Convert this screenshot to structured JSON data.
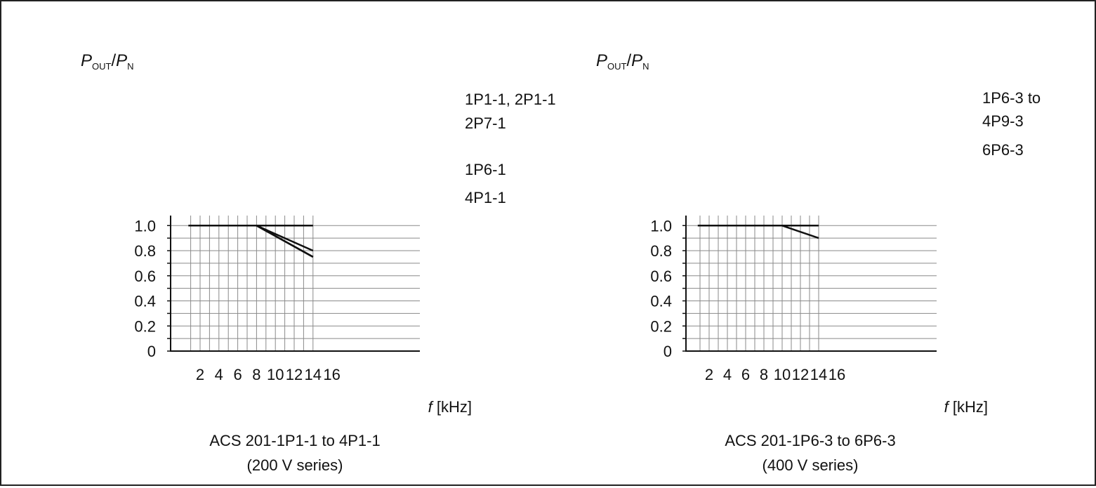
{
  "chart_data": [
    {
      "type": "line",
      "ylabel": {
        "main": "P",
        "sub1": "OUT",
        "slash": "/",
        "main2": "P",
        "sub2": "N"
      },
      "xlabel": {
        "var": "f",
        "unit": " [kHz]"
      },
      "caption": [
        "ACS 201-1P1-1 to 4P1-1",
        "(200 V series)"
      ],
      "x_ticks": [
        2,
        4,
        6,
        8,
        10,
        12,
        14,
        16
      ],
      "y_ticks": [
        {
          "value": 0,
          "label": "0"
        },
        {
          "value": 0.2,
          "label": "0.2"
        },
        {
          "value": 0.4,
          "label": "0.4"
        },
        {
          "value": 0.6,
          "label": "0.6"
        },
        {
          "value": 0.8,
          "label": "0.8"
        },
        {
          "value": 1.0,
          "label": "1.0"
        }
      ],
      "xlim": [
        0.75,
        14
      ],
      "ylim": [
        0,
        1.08
      ],
      "grid": true,
      "series": [
        {
          "name": "1P1-1, 2P1-1",
          "points": [
            [
              0.75,
              1.0
            ],
            [
              14,
              1.0
            ]
          ]
        },
        {
          "name": "2P7-1",
          "points": [
            [
              8,
              1.0
            ],
            [
              14,
              0.8
            ]
          ]
        },
        {
          "name": "1P6-1",
          "points": [
            [
              8,
              1.0
            ],
            [
              14,
              0.75
            ]
          ]
        },
        {
          "name": "4P1-1",
          "points": [
            [
              8,
              1.0
            ],
            [
              14,
              0.75
            ]
          ]
        }
      ],
      "legend_labels": [
        "1P1-1, 2P1-1",
        "2P7-1",
        "1P6-1",
        "4P1-1"
      ]
    },
    {
      "type": "line",
      "ylabel": {
        "main": "P",
        "sub1": "OUT",
        "slash": "/",
        "main2": "P",
        "sub2": "N"
      },
      "xlabel": {
        "var": "f",
        "unit": " [kHz]"
      },
      "caption": [
        "ACS 201-1P6-3 to 6P6-3",
        "(400 V series)"
      ],
      "x_ticks": [
        2,
        4,
        6,
        8,
        10,
        12,
        14,
        16
      ],
      "y_ticks": [
        {
          "value": 0,
          "label": "0"
        },
        {
          "value": 0.2,
          "label": "0.2"
        },
        {
          "value": 0.4,
          "label": "0.4"
        },
        {
          "value": 0.6,
          "label": "0.6"
        },
        {
          "value": 0.8,
          "label": "0.8"
        },
        {
          "value": 1.0,
          "label": "1.0"
        }
      ],
      "xlim": [
        0.75,
        14
      ],
      "ylim": [
        0,
        1.08
      ],
      "grid": true,
      "series": [
        {
          "name": "1P6-3 to 4P9-3",
          "points": [
            [
              0.75,
              1.0
            ],
            [
              14,
              1.0
            ]
          ]
        },
        {
          "name": "6P6-3",
          "points": [
            [
              10,
              1.0
            ],
            [
              14,
              0.9
            ]
          ]
        }
      ],
      "legend_labels": [
        "1P6-3 to",
        "4P9-3",
        "6P6-3"
      ]
    }
  ]
}
